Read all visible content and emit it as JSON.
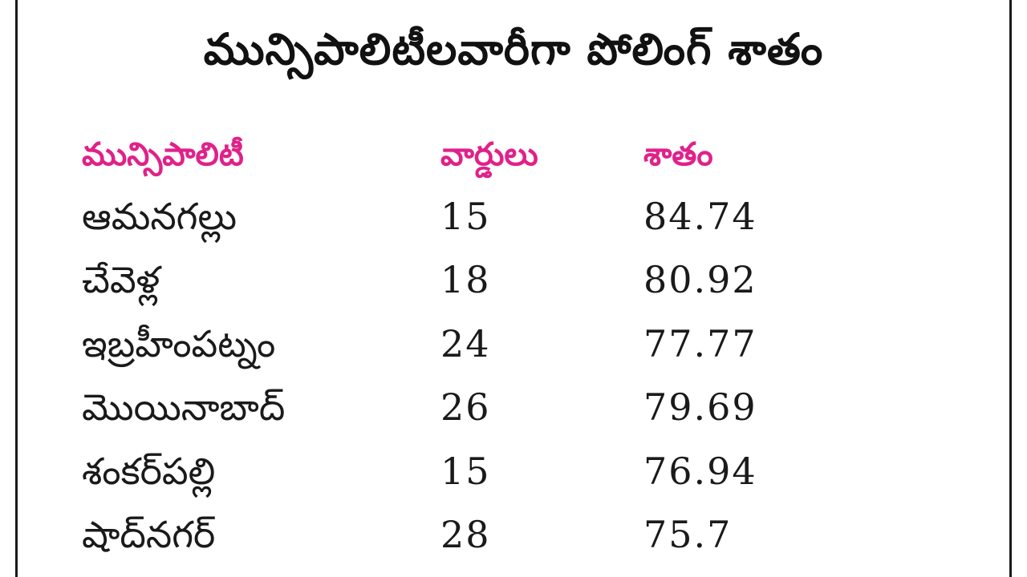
{
  "title": "మున్సిపాలిటీలవారీగా పోలింగ్ శాతం",
  "headers": {
    "municipality": "మున్సిపాలిటీ",
    "wards": "వార్డులు",
    "percent": "శాతం"
  },
  "rows": [
    {
      "municipality": "ఆమనగల్లు",
      "wards": "15",
      "percent": "84.74"
    },
    {
      "municipality": "చేవెళ్ల",
      "wards": "18",
      "percent": "80.92"
    },
    {
      "municipality": "ఇబ్రహీంపట్నం",
      "wards": "24",
      "percent": "77.77"
    },
    {
      "municipality": "మొయినాబాద్",
      "wards": "26",
      "percent": "79.69"
    },
    {
      "municipality": "శంకర్‌పల్లి",
      "wards": "15",
      "percent": "76.94"
    },
    {
      "municipality": "షాద్‌నగర్",
      "wards": "28",
      "percent": "75.7"
    }
  ],
  "colors": {
    "header": "#e0218a",
    "text": "#1a1a1a",
    "border": "#1a1a1a"
  }
}
